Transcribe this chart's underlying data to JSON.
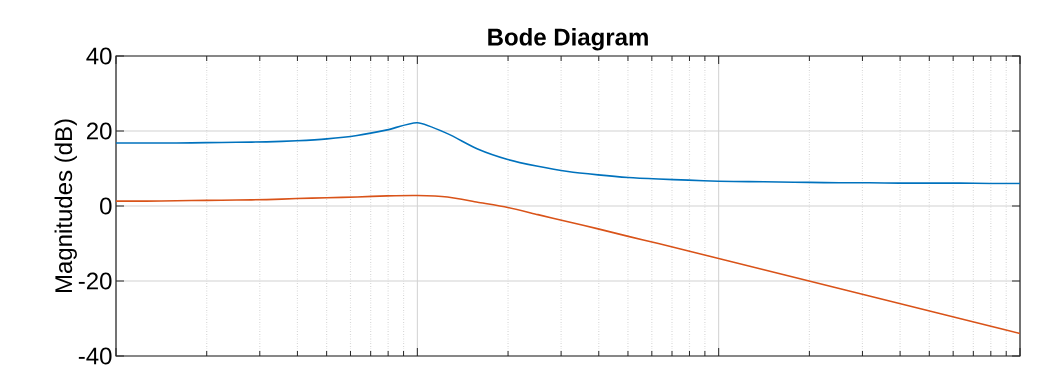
{
  "chart_data": {
    "type": "line",
    "title": "Bode Diagram",
    "ylabel": "Magnitudes (dB)",
    "categories": [
      null,
      null,
      null,
      null,
      null,
      null,
      null,
      null,
      null,
      null,
      null,
      null,
      null,
      null,
      null,
      null,
      null,
      null,
      null,
      null,
      null,
      null,
      null,
      null,
      null,
      null,
      null,
      null,
      null,
      null,
      null
    ],
    "series": [
      {
        "color": "#0072bd",
        "values": [
          16.8,
          16.8,
          16.8,
          16.9,
          17.0,
          17.1,
          17.4,
          17.9,
          18.8,
          20.3,
          22.2,
          19.3,
          15.2,
          12.4,
          10.6,
          9.2,
          8.3,
          7.6,
          7.2,
          6.9,
          6.6,
          6.5,
          6.4,
          6.3,
          6.2,
          6.2,
          6.1,
          6.1,
          6.1,
          6.0,
          6.0
        ]
      },
      {
        "color": "#d95319",
        "values": [
          1.3,
          1.3,
          1.4,
          1.5,
          1.6,
          1.7,
          2.0,
          2.2,
          2.4,
          2.7,
          2.8,
          2.4,
          1.0,
          -0.4,
          -2.3,
          -4.2,
          -6.1,
          -8.1,
          -10.0,
          -12.0,
          -14.0,
          -16.0,
          -18.0,
          -20.0,
          -22.0,
          -24.0,
          -26.0,
          -28.0,
          -30.0,
          -32.0,
          -34.0
        ]
      }
    ],
    "ylim": [
      -40,
      40
    ],
    "yticks": [
      -40,
      -20,
      0,
      20,
      40
    ],
    "grid": true,
    "tick_labels": "y",
    "line_style": "solid",
    "marker": "none"
  }
}
